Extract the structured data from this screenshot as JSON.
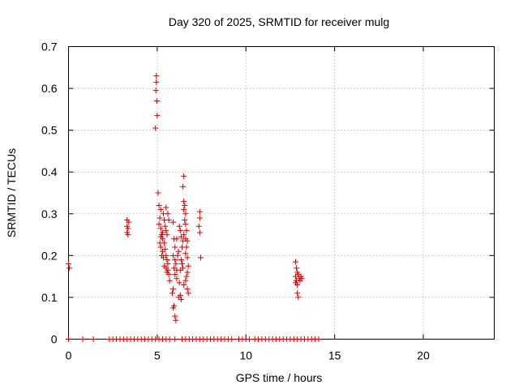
{
  "chart_data": {
    "type": "scatter",
    "title": "Day 320 of 2025, SRMTID for receiver mulg",
    "xlabel": "GPS time / hours",
    "ylabel": "SRMTID / TECUs",
    "xlim": [
      0,
      24
    ],
    "ylim": [
      0,
      0.7
    ],
    "xticks": [
      0,
      5,
      10,
      15,
      20
    ],
    "yticks": [
      0,
      0.1,
      0.2,
      0.3,
      0.4,
      0.5,
      0.6,
      0.7
    ],
    "xtick_labels": [
      "0",
      "5",
      "10",
      "15",
      "20"
    ],
    "ytick_labels": [
      "0",
      "0.1",
      "0.2",
      "0.3",
      "0.4",
      "0.5",
      "0.6",
      "0.7"
    ],
    "grid": true,
    "marker": "+",
    "color": "#d40000",
    "series": [
      {
        "name": "SRMTID",
        "points": [
          [
            0.0,
            0.18
          ],
          [
            0.05,
            0.17
          ],
          [
            3.3,
            0.285
          ],
          [
            3.3,
            0.27
          ],
          [
            3.3,
            0.255
          ],
          [
            3.35,
            0.25
          ],
          [
            3.35,
            0.265
          ],
          [
            3.4,
            0.28
          ],
          [
            4.95,
            0.63
          ],
          [
            4.95,
            0.615
          ],
          [
            4.92,
            0.595
          ],
          [
            4.98,
            0.57
          ],
          [
            5.0,
            0.535
          ],
          [
            4.9,
            0.505
          ],
          [
            5.05,
            0.35
          ],
          [
            5.1,
            0.32
          ],
          [
            5.2,
            0.31
          ],
          [
            5.15,
            0.29
          ],
          [
            5.1,
            0.275
          ],
          [
            5.2,
            0.265
          ],
          [
            5.25,
            0.25
          ],
          [
            5.3,
            0.24
          ],
          [
            5.15,
            0.23
          ],
          [
            5.2,
            0.22
          ],
          [
            5.3,
            0.21
          ],
          [
            5.25,
            0.2
          ],
          [
            5.35,
            0.3
          ],
          [
            5.4,
            0.285
          ],
          [
            5.45,
            0.27
          ],
          [
            5.5,
            0.315
          ],
          [
            5.5,
            0.26
          ],
          [
            5.55,
            0.25
          ],
          [
            5.4,
            0.23
          ],
          [
            5.45,
            0.215
          ],
          [
            5.5,
            0.2
          ],
          [
            5.55,
            0.19
          ],
          [
            5.6,
            0.18
          ],
          [
            5.5,
            0.17
          ],
          [
            5.6,
            0.165
          ],
          [
            5.65,
            0.155
          ],
          [
            5.7,
            0.14
          ],
          [
            5.55,
            0.16
          ],
          [
            5.4,
            0.175
          ],
          [
            5.35,
            0.195
          ],
          [
            5.3,
            0.255
          ],
          [
            5.2,
            0.245
          ],
          [
            5.6,
            0.3
          ],
          [
            5.65,
            0.285
          ],
          [
            5.9,
            0.28
          ],
          [
            5.95,
            0.24
          ],
          [
            6.0,
            0.22
          ],
          [
            5.9,
            0.2
          ],
          [
            6.0,
            0.19
          ],
          [
            6.05,
            0.18
          ],
          [
            5.95,
            0.17
          ],
          [
            6.1,
            0.165
          ],
          [
            6.0,
            0.155
          ],
          [
            6.1,
            0.145
          ],
          [
            5.9,
            0.12
          ],
          [
            5.85,
            0.11
          ],
          [
            5.95,
            0.08
          ],
          [
            5.9,
            0.075
          ],
          [
            6.0,
            0.055
          ],
          [
            6.05,
            0.045
          ],
          [
            6.15,
            0.2
          ],
          [
            6.2,
            0.21
          ],
          [
            6.1,
            0.24
          ],
          [
            6.25,
            0.27
          ],
          [
            6.3,
            0.26
          ],
          [
            6.2,
            0.1
          ],
          [
            6.3,
            0.105
          ],
          [
            6.35,
            0.095
          ],
          [
            6.5,
            0.39
          ],
          [
            6.45,
            0.365
          ],
          [
            6.5,
            0.33
          ],
          [
            6.55,
            0.32
          ],
          [
            6.5,
            0.31
          ],
          [
            6.6,
            0.3
          ],
          [
            6.55,
            0.285
          ],
          [
            6.6,
            0.275
          ],
          [
            6.65,
            0.26
          ],
          [
            6.5,
            0.25
          ],
          [
            6.6,
            0.24
          ],
          [
            6.7,
            0.235
          ],
          [
            6.65,
            0.22
          ],
          [
            6.6,
            0.205
          ],
          [
            6.7,
            0.195
          ],
          [
            6.75,
            0.175
          ],
          [
            6.7,
            0.16
          ],
          [
            6.65,
            0.15
          ],
          [
            6.6,
            0.14
          ],
          [
            6.7,
            0.12
          ],
          [
            6.75,
            0.11
          ],
          [
            6.4,
            0.22
          ],
          [
            6.45,
            0.235
          ],
          [
            6.35,
            0.245
          ],
          [
            6.4,
            0.18
          ],
          [
            6.45,
            0.17
          ],
          [
            6.5,
            0.13
          ],
          [
            6.3,
            0.165
          ],
          [
            6.35,
            0.19
          ],
          [
            6.25,
            0.135
          ],
          [
            7.4,
            0.305
          ],
          [
            7.4,
            0.29
          ],
          [
            7.35,
            0.27
          ],
          [
            7.4,
            0.255
          ],
          [
            7.45,
            0.195
          ],
          [
            12.8,
            0.185
          ],
          [
            12.85,
            0.17
          ],
          [
            12.9,
            0.16
          ],
          [
            12.8,
            0.15
          ],
          [
            12.85,
            0.14
          ],
          [
            12.9,
            0.13
          ],
          [
            12.95,
            0.155
          ],
          [
            13.0,
            0.145
          ],
          [
            13.05,
            0.14
          ],
          [
            13.1,
            0.15
          ],
          [
            13.15,
            0.145
          ],
          [
            12.9,
            0.11
          ],
          [
            12.95,
            0.1
          ],
          [
            12.8,
            0.135
          ],
          [
            0.0,
            0.0
          ],
          [
            0.8,
            0.0
          ],
          [
            1.4,
            0.0
          ],
          [
            2.3,
            0.0
          ],
          [
            2.5,
            0.0
          ],
          [
            2.7,
            0.0
          ],
          [
            2.9,
            0.0
          ],
          [
            3.1,
            0.0
          ],
          [
            3.3,
            0.0
          ],
          [
            3.5,
            0.0
          ],
          [
            3.7,
            0.0
          ],
          [
            3.9,
            0.0
          ],
          [
            4.1,
            0.0
          ],
          [
            4.3,
            0.0
          ],
          [
            4.5,
            0.0
          ],
          [
            4.7,
            0.0
          ],
          [
            4.9,
            0.0
          ],
          [
            5.1,
            0.0
          ],
          [
            5.3,
            0.0
          ],
          [
            5.5,
            0.0
          ],
          [
            5.7,
            0.0
          ],
          [
            6.0,
            0.0
          ],
          [
            6.4,
            0.0
          ],
          [
            6.6,
            0.0
          ],
          [
            6.8,
            0.0
          ],
          [
            7.0,
            0.0
          ],
          [
            7.2,
            0.0
          ],
          [
            7.4,
            0.0
          ],
          [
            7.6,
            0.0
          ],
          [
            7.8,
            0.0
          ],
          [
            8.0,
            0.0
          ],
          [
            8.2,
            0.0
          ],
          [
            8.4,
            0.0
          ],
          [
            8.6,
            0.0
          ],
          [
            8.8,
            0.0
          ],
          [
            9.0,
            0.0
          ],
          [
            9.2,
            0.0
          ],
          [
            9.6,
            0.0
          ],
          [
            9.8,
            0.0
          ],
          [
            10.0,
            0.0
          ],
          [
            10.2,
            0.0
          ],
          [
            10.5,
            0.0
          ],
          [
            10.7,
            0.0
          ],
          [
            10.9,
            0.0
          ],
          [
            11.1,
            0.0
          ],
          [
            11.3,
            0.0
          ],
          [
            11.5,
            0.0
          ],
          [
            11.7,
            0.0
          ],
          [
            11.9,
            0.0
          ],
          [
            12.1,
            0.0
          ],
          [
            12.3,
            0.0
          ],
          [
            12.5,
            0.0
          ],
          [
            12.7,
            0.0
          ],
          [
            12.9,
            0.0
          ],
          [
            13.1,
            0.0
          ],
          [
            13.3,
            0.0
          ],
          [
            13.5,
            0.0
          ],
          [
            13.7,
            0.0
          ],
          [
            13.9,
            0.0
          ],
          [
            14.1,
            0.0
          ]
        ]
      }
    ]
  }
}
